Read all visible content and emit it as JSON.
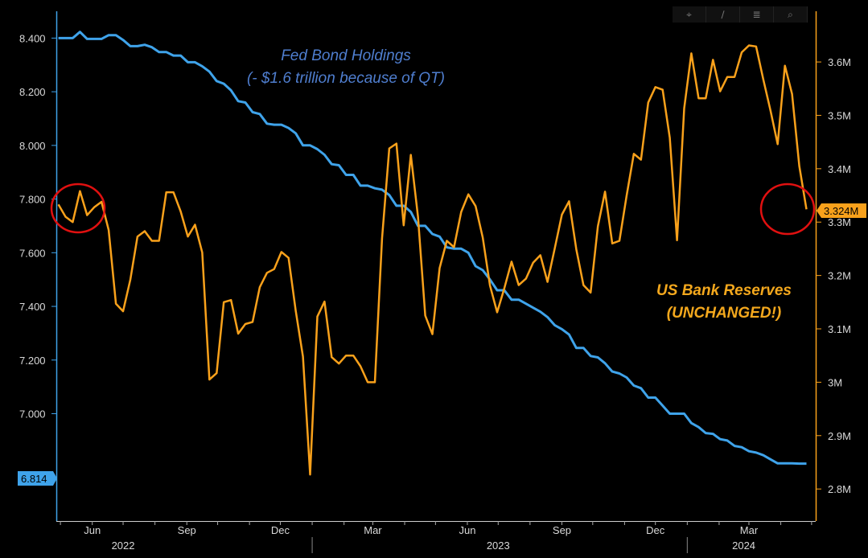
{
  "toolbar": {
    "icons": [
      "crosshair-icon",
      "pencil-icon",
      "layers-icon",
      "zoom-icon"
    ],
    "glyphs": [
      "⌖",
      "∕",
      "≣",
      "⌕"
    ]
  },
  "chart_data": {
    "type": "line",
    "title": "",
    "x": [
      "2022-04-29",
      "2022-05-06",
      "2022-05-13",
      "2022-05-20",
      "2022-05-27",
      "2022-06-03",
      "2022-06-10",
      "2022-06-17",
      "2022-06-24",
      "2022-07-01",
      "2022-07-08",
      "2022-07-15",
      "2022-07-22",
      "2022-07-29",
      "2022-08-05",
      "2022-08-12",
      "2022-08-19",
      "2022-08-26",
      "2022-09-02",
      "2022-09-09",
      "2022-09-16",
      "2022-09-23",
      "2022-09-30",
      "2022-10-07",
      "2022-10-14",
      "2022-10-21",
      "2022-10-28",
      "2022-11-04",
      "2022-11-11",
      "2022-11-18",
      "2022-11-25",
      "2022-12-02",
      "2022-12-09",
      "2022-12-16",
      "2022-12-23",
      "2022-12-30",
      "2023-01-06",
      "2023-01-13",
      "2023-01-20",
      "2023-01-27",
      "2023-02-03",
      "2023-02-10",
      "2023-02-17",
      "2023-02-24",
      "2023-03-03",
      "2023-03-10",
      "2023-03-17",
      "2023-03-24",
      "2023-03-31",
      "2023-04-07",
      "2023-04-14",
      "2023-04-21",
      "2023-04-28",
      "2023-05-05",
      "2023-05-12",
      "2023-05-19",
      "2023-05-26",
      "2023-06-02",
      "2023-06-09",
      "2023-06-16",
      "2023-06-23",
      "2023-06-30",
      "2023-07-07",
      "2023-07-14",
      "2023-07-21",
      "2023-07-28",
      "2023-08-04",
      "2023-08-11",
      "2023-08-18",
      "2023-08-25",
      "2023-09-01",
      "2023-09-08",
      "2023-09-15",
      "2023-09-22",
      "2023-09-29",
      "2023-10-06",
      "2023-10-13",
      "2023-10-20",
      "2023-10-27",
      "2023-11-03",
      "2023-11-10",
      "2023-11-17",
      "2023-11-24",
      "2023-12-01",
      "2023-12-08",
      "2023-12-15",
      "2023-12-22",
      "2023-12-29",
      "2024-01-05",
      "2024-01-12",
      "2024-01-19",
      "2024-01-26",
      "2024-02-02",
      "2024-02-09",
      "2024-02-16",
      "2024-02-23",
      "2024-03-01",
      "2024-03-08",
      "2024-03-15",
      "2024-03-22",
      "2024-03-29",
      "2024-04-05",
      "2024-04-12",
      "2024-04-19",
      "2024-04-26"
    ],
    "x_axis": {
      "months": [
        "Jun",
        "Sep",
        "Dec",
        "Mar",
        "Jun",
        "Sep",
        "Dec",
        "Mar"
      ],
      "month_dates": [
        "2022-06-01",
        "2022-09-01",
        "2022-12-01",
        "2023-03-01",
        "2023-06-01",
        "2023-09-01",
        "2023-12-01",
        "2024-03-01"
      ],
      "years": [
        "2022",
        "2023",
        "2024"
      ],
      "year_dates": [
        "2022-07-01",
        "2023-07-01",
        "2024-02-25"
      ],
      "year_boundaries": [
        "2023-01-01",
        "2024-01-01"
      ],
      "range": [
        "2022-04-27",
        "2024-05-05"
      ]
    },
    "left_axis": {
      "ticks": [
        "8.400",
        "8.200",
        "8.000",
        "7.800",
        "7.600",
        "7.400",
        "7.200",
        "7.000"
      ],
      "values": [
        8.4,
        8.2,
        8.0,
        7.8,
        7.6,
        7.4,
        7.2,
        7.0
      ],
      "range": [
        6.6,
        8.5
      ],
      "last_label": "6.814",
      "last_value": 6.814
    },
    "right_axis": {
      "ticks": [
        "3.6M",
        "3.5M",
        "3.4M",
        "3.3M",
        "3.2M",
        "3.1M",
        "3M",
        "2.9M",
        "2.8M"
      ],
      "values": [
        3.6,
        3.5,
        3.4,
        3.3,
        3.2,
        3.1,
        3.0,
        2.9,
        2.8
      ],
      "range": [
        2.74,
        3.695
      ],
      "last_label": "3.324M",
      "last_value": 3.324
    },
    "series": [
      {
        "name": "Fed Bond Holdings",
        "axis": "left",
        "color": "#3fa3ea",
        "values": [
          8.4,
          8.4,
          8.4,
          8.423,
          8.397,
          8.397,
          8.397,
          8.411,
          8.411,
          8.393,
          8.37,
          8.37,
          8.375,
          8.366,
          8.348,
          8.348,
          8.335,
          8.335,
          8.31,
          8.31,
          8.295,
          8.275,
          8.24,
          8.23,
          8.205,
          8.165,
          8.16,
          8.124,
          8.117,
          8.081,
          8.077,
          8.077,
          8.065,
          8.045,
          8.0,
          8.0,
          7.986,
          7.965,
          7.93,
          7.926,
          7.89,
          7.89,
          7.85,
          7.85,
          7.84,
          7.835,
          7.815,
          7.775,
          7.775,
          7.752,
          7.7,
          7.7,
          7.67,
          7.66,
          7.62,
          7.615,
          7.615,
          7.6,
          7.55,
          7.535,
          7.5,
          7.46,
          7.46,
          7.425,
          7.425,
          7.41,
          7.395,
          7.38,
          7.36,
          7.33,
          7.315,
          7.295,
          7.245,
          7.245,
          7.215,
          7.21,
          7.188,
          7.157,
          7.15,
          7.135,
          7.105,
          7.095,
          7.06,
          7.06,
          7.03,
          7.0,
          7.0,
          7.0,
          6.965,
          6.95,
          6.928,
          6.925,
          6.905,
          6.9,
          6.88,
          6.875,
          6.86,
          6.855,
          6.845,
          6.83,
          6.815,
          6.815,
          6.815,
          6.814,
          6.814
        ]
      },
      {
        "name": "US Bank Reserves",
        "axis": "right",
        "color": "#f9a11b",
        "values": [
          3.333,
          3.31,
          3.3,
          3.358,
          3.313,
          3.328,
          3.338,
          3.285,
          3.147,
          3.133,
          3.192,
          3.273,
          3.283,
          3.265,
          3.265,
          3.356,
          3.356,
          3.32,
          3.273,
          3.295,
          3.243,
          3.005,
          3.017,
          3.15,
          3.154,
          3.091,
          3.109,
          3.113,
          3.178,
          3.205,
          3.212,
          3.244,
          3.233,
          3.134,
          3.048,
          2.827,
          3.123,
          3.151,
          3.047,
          3.035,
          3.05,
          3.05,
          3.03,
          3.0,
          3.0,
          3.269,
          3.438,
          3.447,
          3.294,
          3.426,
          3.31,
          3.125,
          3.09,
          3.214,
          3.265,
          3.253,
          3.319,
          3.352,
          3.33,
          3.271,
          3.181,
          3.131,
          3.176,
          3.226,
          3.182,
          3.194,
          3.224,
          3.238,
          3.188,
          3.25,
          3.314,
          3.339,
          3.249,
          3.182,
          3.168,
          3.292,
          3.357,
          3.26,
          3.265,
          3.35,
          3.428,
          3.417,
          3.524,
          3.553,
          3.548,
          3.458,
          3.266,
          3.513,
          3.616,
          3.532,
          3.532,
          3.604,
          3.545,
          3.572,
          3.572,
          3.618,
          3.631,
          3.629,
          3.567,
          3.509,
          3.446,
          3.593,
          3.54,
          3.405,
          3.324
        ]
      }
    ],
    "annotations": [
      {
        "lines": [
          "Fed Bond Holdings",
          "(- $1.6 trillion because of QT)"
        ],
        "series": "Fed Bond Holdings"
      },
      {
        "lines": [
          "US Bank Reserves",
          "(UNCHANGED!)"
        ],
        "series": "US Bank Reserves"
      }
    ],
    "highlight_circles": 2,
    "grid": false,
    "legend": "none"
  }
}
